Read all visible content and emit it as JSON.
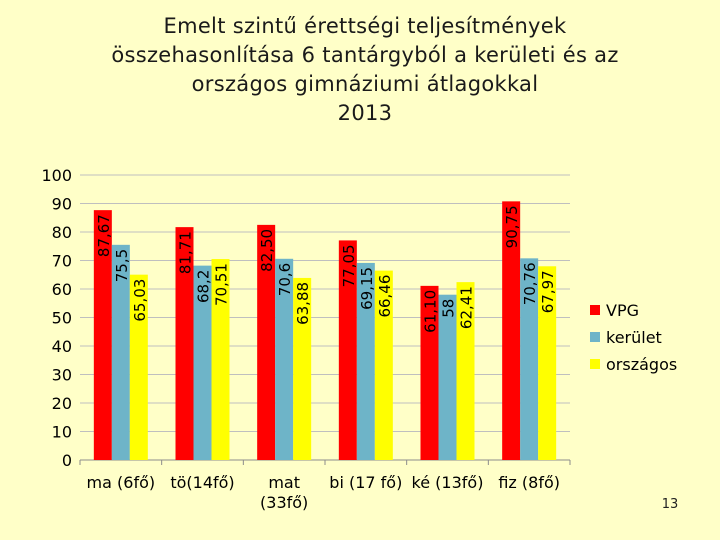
{
  "title": {
    "line1": "Emelt szintű érettségi teljesítmények",
    "line2": "összehasonlítása 6 tantárgyból a kerületi és az",
    "line3": "országos gimnáziumi átlagokkal",
    "line4": "2013"
  },
  "page_number": "13",
  "chart_data": {
    "type": "bar",
    "title": "",
    "xlabel": "",
    "ylabel": "",
    "ylim": [
      0,
      100
    ],
    "yticks": [
      "0",
      "10",
      "20",
      "30",
      "40",
      "50",
      "60",
      "70",
      "80",
      "90",
      "100"
    ],
    "grid": true,
    "legend_position": "right",
    "categories": [
      [
        "ma (6fő)"
      ],
      [
        "tö(14fő)"
      ],
      [
        "mat",
        "(33fő)"
      ],
      [
        "bi (17 fő)"
      ],
      [
        "ké (13fő)"
      ],
      [
        "fiz (8fő)"
      ]
    ],
    "series": [
      {
        "name": "VPG",
        "color": "#ff0000",
        "values": [
          87.67,
          81.71,
          82.5,
          77.05,
          61.1,
          90.75
        ],
        "labels": [
          "87,67",
          "81,71",
          "82,50",
          "77,05",
          "61,10",
          "90,75"
        ]
      },
      {
        "name": "kerület",
        "color": "#6eb4c8",
        "values": [
          75.5,
          68.2,
          70.6,
          69.15,
          58,
          70.76
        ],
        "labels": [
          "75,5",
          "68,2",
          "70,6",
          "69,15",
          "58",
          "70,76"
        ]
      },
      {
        "name": "országos",
        "color": "#ffff00",
        "values": [
          65.03,
          70.51,
          63.88,
          66.46,
          62.41,
          67.97
        ],
        "labels": [
          "65,03",
          "70,51",
          "63,88",
          "66,46",
          "62,41",
          "67,97"
        ]
      }
    ]
  }
}
